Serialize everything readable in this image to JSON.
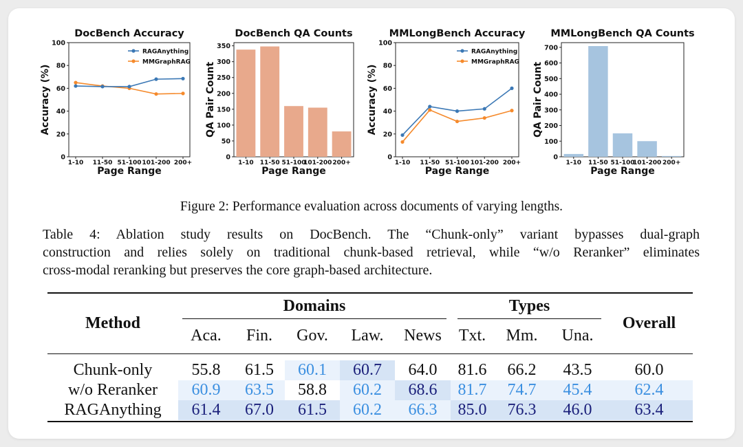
{
  "figure": {
    "caption": "Figure 2: Performance evaluation across documents of varying lengths."
  },
  "colors": {
    "blue": "#3b78b5",
    "orange": "#f58a2c",
    "salmon": "#e8a98c",
    "lightblue": "#a6c4df",
    "dark_cell": "#d6e4f5",
    "light_cell": "#eaf2fc"
  },
  "chart_data": [
    {
      "type": "line",
      "title": "DocBench Accuracy",
      "xlabel": "Page Range",
      "ylabel": "Accuracy (%)",
      "categories": [
        "1-10",
        "11-50",
        "51-100",
        "101-200",
        "200+"
      ],
      "ylim": [
        0,
        100
      ],
      "yticks": [
        "0",
        "20",
        "40",
        "60",
        "80",
        "100"
      ],
      "legend": "top-right",
      "series": [
        {
          "name": "RAGAnything",
          "values": [
            62,
            61.5,
            61.5,
            68,
            68.5
          ]
        },
        {
          "name": "MMGraphRAG",
          "values": [
            65,
            62,
            60,
            55,
            55.5
          ]
        }
      ]
    },
    {
      "type": "bar",
      "title": "DocBench QA Counts",
      "xlabel": "Page Range",
      "ylabel": "QA Pair Count",
      "categories": [
        "1-10",
        "11-50",
        "51-100",
        "101-200",
        "200+"
      ],
      "values": [
        338,
        348,
        160,
        155,
        80
      ],
      "ylim": [
        0,
        360
      ],
      "yticks": [
        "0",
        "50",
        "100",
        "150",
        "200",
        "250",
        "300",
        "350"
      ]
    },
    {
      "type": "line",
      "title": "MMLongBench Accuracy",
      "xlabel": "Page Range",
      "ylabel": "Accuracy (%)",
      "categories": [
        "1-10",
        "11-50",
        "51-100",
        "101-200",
        "200+"
      ],
      "ylim": [
        0,
        100
      ],
      "yticks": [
        "0",
        "20",
        "40",
        "60",
        "80",
        "100"
      ],
      "legend": "top-right",
      "series": [
        {
          "name": "RAGAnything",
          "values": [
            19,
            44,
            40,
            42,
            60
          ]
        },
        {
          "name": "MMGraphRAG",
          "values": [
            13,
            41,
            31,
            34,
            40.5
          ]
        }
      ]
    },
    {
      "type": "bar",
      "title": "MMLongBench QA Counts",
      "xlabel": "Page Range",
      "ylabel": "QA Pair Count",
      "categories": [
        "1-10",
        "11-50",
        "51-100",
        "101-200",
        "200+"
      ],
      "values": [
        18,
        708,
        150,
        100,
        5
      ],
      "ylim": [
        0,
        730
      ],
      "yticks": [
        "0",
        "100",
        "200",
        "300",
        "400",
        "500",
        "600",
        "700"
      ]
    }
  ],
  "table": {
    "caption_lines": [
      "Table 4:  Ablation study results on DocBench.  The “Chunk-only” variant bypasses dual-graph",
      "construction and relies solely on traditional chunk-based retrieval, while “w/o Reranker” eliminates",
      "cross-modal reranking but preserves the core graph-based architecture."
    ],
    "header_method": "Method",
    "header_domains": "Domains",
    "header_types": "Types",
    "header_overall": "Overall",
    "sub_headers": [
      "Aca.",
      "Fin.",
      "Gov.",
      "Law.",
      "News",
      "Txt.",
      "Mm.",
      "Una."
    ],
    "rows": [
      {
        "method": "Chunk-only",
        "cells": [
          "55.8",
          "61.5",
          "60.1",
          "60.7",
          "64.0",
          "81.6",
          "66.2",
          "43.5",
          "60.0"
        ],
        "hl": [
          "",
          "",
          "light",
          "dark",
          "",
          "",
          "",
          "",
          ""
        ]
      },
      {
        "method": "w/o Reranker",
        "cells": [
          "60.9",
          "63.5",
          "58.8",
          "60.2",
          "68.6",
          "81.7",
          "74.7",
          "45.4",
          "62.4"
        ],
        "hl": [
          "light",
          "light",
          "",
          "light",
          "dark",
          "light",
          "light",
          "light",
          "light"
        ]
      },
      {
        "method": "RAGAnything",
        "cells": [
          "61.4",
          "67.0",
          "61.5",
          "60.2",
          "66.3",
          "85.0",
          "76.3",
          "46.0",
          "63.4"
        ],
        "hl": [
          "dark",
          "dark",
          "dark",
          "light",
          "light",
          "dark",
          "dark",
          "dark",
          "dark"
        ]
      }
    ]
  }
}
